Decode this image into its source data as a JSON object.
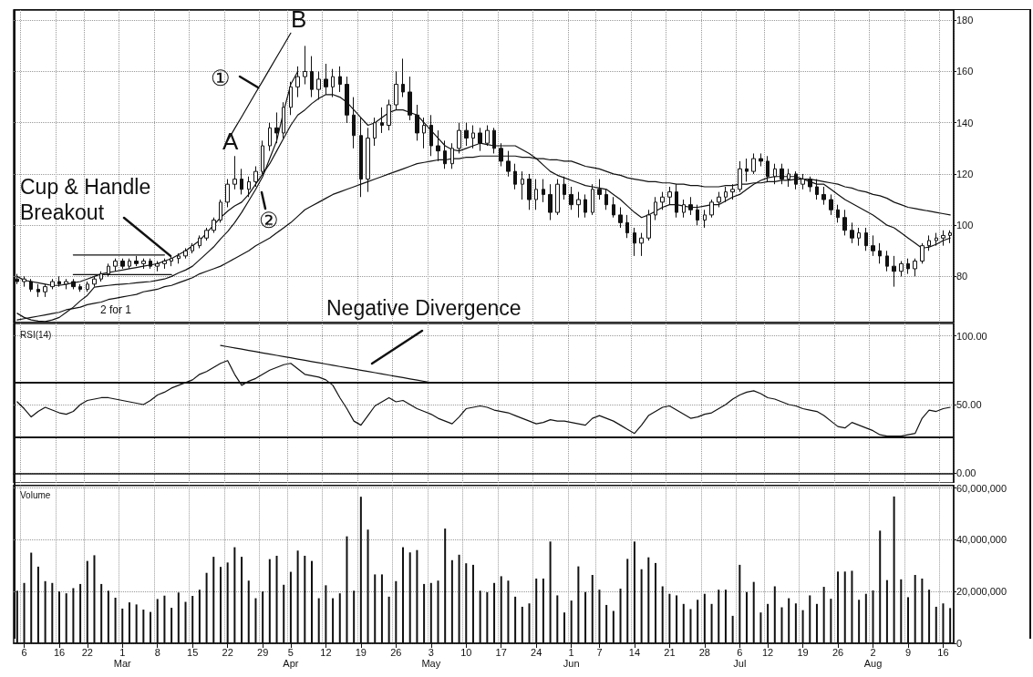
{
  "chart_data": [
    {
      "type": "candlestick",
      "color": "#111111",
      "grid": true,
      "tick_labels": "y",
      "marker": "none",
      "categories": [
        null,
        null,
        null,
        null,
        null,
        null,
        null,
        null,
        null,
        null,
        null,
        null,
        null,
        null,
        null,
        null,
        null,
        null,
        null,
        null,
        null,
        null,
        null,
        null,
        null,
        null,
        null,
        null,
        null,
        null,
        null,
        null,
        null,
        null,
        null,
        null,
        null,
        null,
        null,
        null,
        null,
        null,
        null,
        null,
        null,
        null,
        null,
        null,
        null,
        null,
        null,
        null,
        null,
        null,
        null,
        null,
        null,
        null,
        null,
        null,
        null,
        null,
        null,
        null,
        null,
        null,
        null,
        null,
        null,
        null,
        null,
        null,
        null,
        null,
        null,
        null,
        null,
        null,
        null,
        null,
        null,
        null,
        null,
        null,
        null,
        null,
        null,
        null,
        null,
        null,
        null,
        null,
        null,
        null,
        null,
        null,
        null,
        null,
        null,
        null,
        null,
        null,
        null,
        null,
        null,
        null,
        null,
        null,
        null,
        null,
        null,
        null,
        null,
        null,
        null,
        null,
        null,
        null,
        null,
        null,
        null,
        null,
        null,
        null,
        null,
        null,
        null,
        null,
        null,
        null,
        null,
        null,
        null,
        null
      ],
      "ohlc": [
        [
          79,
          81,
          77,
          78
        ],
        [
          78,
          80,
          76,
          79
        ],
        [
          78,
          79,
          74,
          75
        ],
        [
          75,
          77,
          72,
          74
        ],
        [
          74,
          77,
          72,
          76
        ],
        [
          76,
          79,
          75,
          78
        ],
        [
          78,
          80,
          76,
          77
        ],
        [
          77,
          79,
          75,
          78
        ],
        [
          78,
          79,
          75,
          76
        ],
        [
          76,
          77,
          74,
          75
        ],
        [
          75,
          78,
          74,
          77
        ],
        [
          77,
          80,
          76,
          79
        ],
        [
          79,
          82,
          78,
          81
        ],
        [
          81,
          85,
          80,
          84
        ],
        [
          84,
          87,
          82,
          86
        ],
        [
          86,
          87,
          83,
          84
        ],
        [
          84,
          87,
          83,
          86
        ],
        [
          86,
          88,
          84,
          85
        ],
        [
          85,
          87,
          83,
          86
        ],
        [
          86,
          87,
          83,
          84
        ],
        [
          84,
          86,
          82,
          85
        ],
        [
          85,
          87,
          83,
          86
        ],
        [
          86,
          88,
          84,
          87
        ],
        [
          87,
          89,
          85,
          88
        ],
        [
          88,
          91,
          87,
          90
        ],
        [
          90,
          93,
          89,
          92
        ],
        [
          92,
          96,
          91,
          95
        ],
        [
          95,
          99,
          94,
          98
        ],
        [
          98,
          103,
          97,
          102
        ],
        [
          102,
          110,
          101,
          109
        ],
        [
          109,
          118,
          107,
          116
        ],
        [
          116,
          127,
          114,
          118
        ],
        [
          118,
          122,
          112,
          114
        ],
        [
          114,
          119,
          111,
          117
        ],
        [
          117,
          123,
          115,
          121
        ],
        [
          121,
          133,
          120,
          131
        ],
        [
          131,
          140,
          129,
          138
        ],
        [
          138,
          144,
          132,
          136
        ],
        [
          136,
          148,
          134,
          146
        ],
        [
          146,
          156,
          143,
          154
        ],
        [
          154,
          162,
          150,
          158
        ],
        [
          158,
          170,
          155,
          160
        ],
        [
          160,
          166,
          150,
          153
        ],
        [
          153,
          160,
          149,
          157
        ],
        [
          157,
          163,
          151,
          154
        ],
        [
          154,
          161,
          150,
          158
        ],
        [
          158,
          162,
          152,
          155
        ],
        [
          155,
          158,
          140,
          143
        ],
        [
          143,
          150,
          130,
          135
        ],
        [
          135,
          142,
          111,
          118
        ],
        [
          118,
          138,
          113,
          134
        ],
        [
          134,
          142,
          131,
          140
        ],
        [
          140,
          146,
          136,
          139
        ],
        [
          139,
          149,
          137,
          147
        ],
        [
          147,
          160,
          145,
          155
        ],
        [
          155,
          165,
          150,
          152
        ],
        [
          152,
          158,
          141,
          143
        ],
        [
          143,
          147,
          133,
          136
        ],
        [
          136,
          142,
          130,
          139
        ],
        [
          139,
          143,
          127,
          131
        ],
        [
          131,
          137,
          125,
          129
        ],
        [
          129,
          133,
          122,
          124
        ],
        [
          124,
          132,
          122,
          130
        ],
        [
          130,
          140,
          128,
          137
        ],
        [
          137,
          140,
          131,
          134
        ],
        [
          134,
          139,
          130,
          136
        ],
        [
          136,
          138,
          129,
          132
        ],
        [
          132,
          139,
          131,
          137
        ],
        [
          137,
          138,
          128,
          130
        ],
        [
          130,
          132,
          123,
          125
        ],
        [
          125,
          129,
          119,
          121
        ],
        [
          121,
          124,
          114,
          116
        ],
        [
          116,
          121,
          110,
          118
        ],
        [
          118,
          120,
          106,
          110
        ],
        [
          110,
          118,
          106,
          114
        ],
        [
          114,
          118,
          109,
          112
        ],
        [
          112,
          116,
          102,
          105
        ],
        [
          105,
          118,
          104,
          116
        ],
        [
          116,
          119,
          110,
          112
        ],
        [
          112,
          115,
          106,
          108
        ],
        [
          108,
          113,
          103,
          110
        ],
        [
          110,
          112,
          103,
          105
        ],
        [
          105,
          116,
          104,
          114
        ],
        [
          114,
          118,
          110,
          112
        ],
        [
          112,
          114,
          106,
          108
        ],
        [
          108,
          111,
          103,
          104
        ],
        [
          104,
          107,
          99,
          101
        ],
        [
          101,
          104,
          95,
          97
        ],
        [
          97,
          99,
          88,
          93
        ],
        [
          93,
          97,
          88,
          95
        ],
        [
          95,
          106,
          94,
          104
        ],
        [
          104,
          111,
          102,
          109
        ],
        [
          109,
          113,
          106,
          111
        ],
        [
          111,
          115,
          108,
          113
        ],
        [
          113,
          116,
          103,
          105
        ],
        [
          105,
          110,
          103,
          108
        ],
        [
          108,
          111,
          104,
          106
        ],
        [
          106,
          108,
          100,
          102
        ],
        [
          102,
          106,
          99,
          104
        ],
        [
          104,
          110,
          103,
          109
        ],
        [
          109,
          113,
          107,
          111
        ],
        [
          111,
          115,
          109,
          113
        ],
        [
          113,
          116,
          110,
          114
        ],
        [
          114,
          125,
          113,
          122
        ],
        [
          122,
          126,
          117,
          121
        ],
        [
          121,
          128,
          120,
          126
        ],
        [
          126,
          128,
          123,
          125
        ],
        [
          125,
          127,
          117,
          119
        ],
        [
          119,
          124,
          116,
          122
        ],
        [
          122,
          124,
          116,
          118
        ],
        [
          118,
          122,
          115,
          120
        ],
        [
          120,
          121,
          114,
          116
        ],
        [
          116,
          120,
          114,
          118
        ],
        [
          118,
          119,
          113,
          115
        ],
        [
          115,
          118,
          110,
          112
        ],
        [
          112,
          115,
          108,
          110
        ],
        [
          110,
          112,
          104,
          106
        ],
        [
          106,
          108,
          101,
          103
        ],
        [
          103,
          106,
          96,
          98
        ],
        [
          98,
          101,
          93,
          95
        ],
        [
          95,
          99,
          92,
          97
        ],
        [
          97,
          99,
          90,
          92
        ],
        [
          92,
          96,
          88,
          90
        ],
        [
          90,
          93,
          85,
          88
        ],
        [
          88,
          90,
          82,
          84
        ],
        [
          84,
          88,
          76,
          82
        ],
        [
          82,
          86,
          80,
          85
        ],
        [
          85,
          87,
          81,
          83
        ],
        [
          83,
          87,
          80,
          86
        ],
        [
          86,
          93,
          85,
          92
        ],
        [
          92,
          96,
          90,
          94
        ],
        [
          94,
          97,
          92,
          95
        ],
        [
          95,
          98,
          92,
          96
        ],
        [
          96,
          98,
          93,
          97
        ]
      ],
      "series": [
        {
          "type": "line",
          "color": "#111111",
          "values": [
            80,
            78.5,
            78,
            77.5,
            77,
            76.5,
            76.5,
            77,
            77.5,
            78,
            79,
            80,
            81,
            81.5,
            82,
            82.5,
            83,
            83.5,
            84,
            84.5,
            85,
            86,
            87,
            88.5,
            90,
            92,
            94,
            97,
            100,
            103,
            105.5,
            107.5,
            109,
            112,
            116,
            120,
            124,
            129,
            134,
            139,
            143,
            145,
            147.5,
            149.5,
            151,
            151,
            150,
            148,
            145,
            142,
            139,
            140,
            142,
            144,
            145,
            145,
            144,
            143,
            140,
            137,
            134,
            131,
            129.5,
            129,
            130,
            131,
            132,
            131.5,
            131,
            131,
            131,
            131,
            129.5,
            128,
            126,
            123.5,
            121,
            119.5,
            118.5,
            117.5,
            116.5,
            115.5,
            115,
            114.5,
            114,
            112,
            110,
            107.5,
            105,
            103,
            104,
            105.5,
            107,
            108,
            108,
            107.5,
            107,
            107,
            107.5,
            108,
            108,
            109.5,
            111,
            112,
            114,
            116,
            117.5,
            118.5,
            119,
            119,
            119,
            119,
            118,
            117,
            116,
            116,
            114,
            112,
            110,
            108.5,
            107,
            105.5,
            104,
            102,
            100,
            99,
            97,
            95,
            93,
            91,
            91.5,
            92.5,
            94,
            95
          ]
        },
        {
          "type": "line",
          "color": "#111111",
          "values": [
            65.6,
            64,
            63,
            62.6,
            62.4,
            63,
            64,
            66,
            68,
            70.5,
            72.6,
            75.8,
            76.2,
            76.5,
            76.8,
            77,
            77.2,
            77.5,
            77.8,
            78,
            78.5,
            79,
            80,
            81.4,
            82.5,
            84,
            86.5,
            89,
            91.5,
            94.7,
            97.5,
            101,
            105,
            109.5,
            114,
            119,
            126,
            133,
            144.6,
            155,
            160,
            null,
            null,
            null,
            null,
            null,
            null,
            null,
            null,
            null,
            null,
            null,
            null,
            null,
            null,
            null,
            null,
            null,
            null,
            null,
            null,
            null,
            null,
            null,
            null,
            null,
            null,
            null,
            null,
            null,
            null,
            null,
            null,
            null,
            null,
            null,
            null,
            null,
            null,
            null,
            null,
            null,
            null,
            null,
            null,
            null,
            null,
            null,
            null,
            null,
            null,
            null,
            null,
            null,
            null,
            null,
            null,
            null,
            null,
            null,
            null,
            null,
            null,
            null,
            null,
            null,
            null,
            null,
            null,
            null,
            null,
            null,
            null,
            null,
            null,
            null,
            null,
            null,
            null,
            null,
            null,
            null,
            null,
            null,
            null,
            null,
            null,
            null,
            null,
            null,
            null,
            null,
            null,
            null
          ]
        },
        {
          "type": "line",
          "color": "#111111",
          "values": [
            null,
            null,
            null,
            null,
            null,
            null,
            null,
            null,
            null,
            null,
            null,
            null,
            null,
            null,
            null,
            null,
            null,
            null,
            null,
            null,
            null,
            null,
            null,
            null,
            null,
            null,
            null,
            null,
            null,
            null,
            133,
            137.7,
            142.3,
            147,
            151.7,
            156.3,
            161,
            165.7,
            170.3,
            175,
            null,
            null,
            null,
            null,
            null,
            null,
            null,
            null,
            null,
            null,
            null,
            null,
            null,
            null,
            null,
            null,
            null,
            null,
            null,
            null,
            null,
            null,
            null,
            null,
            null,
            null,
            null,
            null,
            null,
            null,
            null,
            null,
            null,
            null,
            null,
            null,
            null,
            null,
            null,
            null,
            null,
            null,
            null,
            null,
            null,
            null,
            null,
            null,
            null,
            null,
            null,
            null,
            null,
            null,
            null,
            null,
            null,
            null,
            null,
            null,
            null,
            null,
            null,
            null,
            null,
            null,
            null,
            null,
            null,
            null,
            null,
            null,
            null,
            null,
            null,
            null,
            null,
            null,
            null,
            null,
            null,
            null,
            null,
            null,
            null,
            null,
            null,
            null,
            null,
            null,
            null,
            null,
            null,
            null
          ]
        },
        {
          "type": "line",
          "color": "#111111",
          "values": [
            null,
            null,
            null,
            null,
            null,
            null,
            null,
            null,
            88.4,
            88.4,
            88.4,
            88.4,
            88.4,
            88.4,
            88.4,
            88.4,
            88.4,
            88.4,
            88.4,
            88.4,
            88.4,
            88.4,
            null,
            null,
            null,
            null,
            null,
            null,
            null,
            null,
            null,
            null,
            null,
            null,
            null,
            null,
            null,
            null,
            null,
            null,
            null,
            null,
            null,
            null,
            null,
            null,
            null,
            null,
            null,
            null,
            null,
            null,
            null,
            null,
            null,
            null,
            null,
            null,
            null,
            null,
            null,
            null,
            null,
            null,
            null,
            null,
            null,
            null,
            null,
            null,
            null,
            null,
            null,
            null,
            null,
            null,
            null,
            null,
            null,
            null,
            null,
            null,
            null,
            null,
            null,
            null,
            null,
            null,
            null,
            null,
            null,
            null,
            null,
            null,
            null,
            null,
            null,
            null,
            null,
            null,
            null,
            null,
            null,
            null,
            null,
            null,
            null,
            null,
            null,
            null,
            null,
            null,
            null,
            null,
            null,
            null,
            null,
            null,
            null,
            null,
            null,
            null,
            null,
            null,
            null,
            null,
            null,
            null,
            null,
            null,
            null,
            null,
            null,
            null
          ]
        },
        {
          "type": "line",
          "color": "#111111",
          "values": [
            null,
            null,
            null,
            null,
            null,
            null,
            null,
            null,
            80.7,
            80.7,
            80.7,
            80.7,
            80.7,
            80.7,
            80.7,
            80.7,
            80.7,
            80.7,
            80.7,
            80.7,
            80.7,
            80.7,
            80.7,
            null,
            null,
            null,
            null,
            null,
            null,
            null,
            null,
            null,
            null,
            null,
            null,
            null,
            null,
            null,
            null,
            null,
            null,
            null,
            null,
            null,
            null,
            null,
            null,
            null,
            null,
            null,
            null,
            null,
            null,
            null,
            null,
            null,
            null,
            null,
            null,
            null,
            null,
            null,
            null,
            null,
            null,
            null,
            null,
            null,
            null,
            null,
            null,
            null,
            null,
            null,
            null,
            null,
            null,
            null,
            null,
            null,
            null,
            null,
            null,
            null,
            null,
            null,
            null,
            null,
            null,
            null,
            null,
            null,
            null,
            null,
            null,
            null,
            null,
            null,
            null,
            null,
            null,
            null,
            null,
            null,
            null,
            null,
            null,
            null,
            null,
            null,
            null,
            null,
            null,
            null,
            null,
            null,
            null,
            null,
            null,
            null,
            null,
            null,
            null,
            null,
            null,
            null,
            null,
            null,
            null,
            null,
            null,
            null,
            null,
            null
          ]
        },
        {
          "type": "line",
          "color": "#111111",
          "values": [
            63,
            63.5,
            64,
            64.5,
            65,
            65.5,
            66,
            67,
            67.5,
            68,
            69,
            69.5,
            70,
            71,
            71.5,
            72,
            72.5,
            73,
            74,
            74.5,
            75,
            76,
            76.5,
            77.5,
            78.5,
            79.5,
            81,
            82,
            83,
            84,
            85.5,
            87,
            88.5,
            90,
            92,
            93.5,
            95,
            97,
            99,
            101,
            103.5,
            106,
            107.5,
            109,
            110.5,
            112,
            113,
            114,
            115,
            116,
            117,
            118,
            119,
            120,
            121,
            122,
            123,
            124,
            124.5,
            125,
            125.5,
            125.5,
            126,
            126,
            126.5,
            126.5,
            127,
            127,
            127,
            127,
            127,
            127,
            126.5,
            126.5,
            126,
            126,
            125.5,
            125.5,
            125,
            125,
            124,
            123,
            122.5,
            122,
            121,
            120,
            119.5,
            118.5,
            118,
            117.5,
            117,
            117,
            116.5,
            116.5,
            116,
            116,
            115.5,
            115.5,
            115,
            115,
            115,
            115.5,
            115.5,
            116,
            116,
            116.5,
            116.5,
            117,
            117,
            117.5,
            117.5,
            118,
            118,
            118,
            117.5,
            117,
            116.5,
            116,
            115,
            114.5,
            113.5,
            113,
            112,
            111.5,
            110.5,
            109,
            108,
            107,
            106.5,
            106,
            105.5,
            105,
            104.5,
            104
          ]
        }
      ],
      "ylim": [
        62,
        184
      ],
      "yticks": [
        80,
        100,
        120,
        140,
        160,
        180
      ],
      "annotations": [
        {
          "text": "Cup & Handle Breakout",
          "y": 88
        },
        "A",
        "B",
        "①",
        "②",
        "2 for 1"
      ]
    },
    {
      "type": "line",
      "title": "RSI(14)",
      "color": "#111111",
      "grid": true,
      "tick_labels": "y",
      "marker": "none",
      "categories": [
        null,
        null,
        null,
        null,
        null,
        null,
        null,
        null,
        null,
        null,
        null,
        null,
        null,
        null,
        null,
        null,
        null,
        null,
        null,
        null,
        null,
        null,
        null,
        null,
        null,
        null,
        null,
        null,
        null,
        null,
        null,
        null,
        null,
        null,
        null,
        null,
        null,
        null,
        null,
        null,
        null,
        null,
        null,
        null,
        null,
        null,
        null,
        null,
        null,
        null,
        null,
        null,
        null,
        null,
        null,
        null,
        null,
        null,
        null,
        null,
        null,
        null,
        null,
        null,
        null,
        null,
        null,
        null,
        null,
        null,
        null,
        null,
        null,
        null,
        null,
        null,
        null,
        null,
        null,
        null,
        null,
        null,
        null,
        null,
        null,
        null,
        null,
        null,
        null,
        null,
        null,
        null,
        null,
        null,
        null,
        null,
        null,
        null,
        null,
        null,
        null,
        null,
        null,
        null,
        null,
        null,
        null,
        null,
        null,
        null,
        null,
        null,
        null,
        null,
        null,
        null,
        null,
        null,
        null,
        null,
        null,
        null,
        null,
        null,
        null,
        null,
        null,
        null,
        null,
        null,
        null,
        null,
        null,
        null
      ],
      "values": [
        52,
        47,
        41,
        45,
        48,
        46,
        44,
        43,
        45,
        50,
        53,
        54,
        55,
        55,
        54,
        53,
        52,
        51,
        50,
        53,
        57,
        59,
        62,
        64,
        66,
        68,
        72,
        74,
        77,
        80,
        82,
        72,
        64,
        67,
        69,
        72,
        75,
        77,
        79,
        80,
        76,
        72,
        71,
        70,
        68,
        64,
        55,
        47,
        38,
        35,
        42,
        49,
        52,
        55,
        52,
        53,
        50,
        47,
        45,
        43,
        40,
        38,
        36,
        41,
        47,
        48,
        49,
        48,
        46,
        45,
        44,
        42,
        40,
        38,
        36,
        37,
        39,
        38,
        38,
        37,
        36,
        35,
        40,
        42,
        40,
        38,
        35,
        32,
        29,
        35,
        42,
        45,
        48,
        49,
        46,
        43,
        40,
        41,
        43,
        44,
        47,
        50,
        54,
        57,
        59,
        60,
        58,
        55,
        54,
        52,
        50,
        49,
        47,
        46,
        45,
        42,
        38,
        34,
        33,
        37,
        35,
        33,
        31,
        28,
        27,
        27,
        27,
        28,
        29,
        40,
        46,
        45,
        47,
        48
      ],
      "series": [
        {
          "type": "line",
          "color": "#111111",
          "values": [
            null,
            null,
            null,
            null,
            null,
            null,
            null,
            null,
            null,
            null,
            null,
            null,
            null,
            null,
            null,
            null,
            null,
            null,
            null,
            null,
            null,
            null,
            null,
            null,
            null,
            null,
            null,
            null,
            null,
            93,
            92.1,
            91.2,
            90.3,
            89.4,
            88.5,
            87.6,
            86.7,
            85.8,
            84.9,
            84,
            83.1,
            82.2,
            81.3,
            80.4,
            79.5,
            78.6,
            77.7,
            76.8,
            75.9,
            75,
            74.1,
            73.2,
            72.3,
            71.4,
            70.5,
            69.6,
            68.7,
            67.8,
            66.9,
            66,
            null,
            null,
            null,
            null,
            null,
            null,
            null,
            null,
            null,
            null,
            null,
            null,
            null,
            null,
            null,
            null,
            null,
            null,
            null,
            null,
            null,
            null,
            null,
            null,
            null,
            null,
            null,
            null,
            null,
            null,
            null,
            null,
            null,
            null,
            null,
            null,
            null,
            null,
            null,
            null,
            null,
            null,
            null,
            null,
            null,
            null,
            null,
            null,
            null,
            null,
            null,
            null,
            null,
            null,
            null,
            null,
            null,
            null,
            null,
            null,
            null,
            null,
            null,
            null,
            null,
            null,
            null,
            null,
            null,
            null,
            null,
            null,
            null,
            null
          ]
        }
      ],
      "ylim": [
        -7,
        109
      ],
      "yticks": [
        {
          "value": 0,
          "label": "0.00"
        },
        {
          "value": 50,
          "label": "50.00"
        },
        {
          "value": 100,
          "label": "100.00"
        }
      ],
      "ref_lines": [
        {
          "axis": "y",
          "value": 66,
          "color": "#111111"
        },
        {
          "axis": "y",
          "value": 26,
          "color": "#111111"
        }
      ],
      "annotations": [
        "Negative Divergence"
      ]
    },
    {
      "type": "bar",
      "title": "Volume",
      "color": "#111111",
      "grid": true,
      "categories": [
        null,
        "6",
        null,
        null,
        null,
        null,
        "16",
        null,
        null,
        null,
        "22",
        null,
        null,
        null,
        null,
        "1\nMar",
        null,
        null,
        null,
        null,
        "8",
        null,
        null,
        null,
        null,
        "15",
        null,
        null,
        null,
        null,
        "22",
        null,
        null,
        null,
        null,
        "29",
        null,
        null,
        null,
        "5\nApr",
        null,
        null,
        null,
        null,
        "12",
        null,
        null,
        null,
        null,
        "19",
        null,
        null,
        null,
        null,
        "26",
        null,
        null,
        null,
        null,
        "3\nMay",
        null,
        null,
        null,
        null,
        "10",
        null,
        null,
        null,
        null,
        "17",
        null,
        null,
        null,
        null,
        "24",
        null,
        null,
        null,
        null,
        "1\nJun",
        null,
        null,
        null,
        "7",
        null,
        null,
        null,
        null,
        "14",
        null,
        null,
        null,
        null,
        "21",
        null,
        null,
        null,
        null,
        "28",
        null,
        null,
        null,
        null,
        "6\nJul",
        null,
        null,
        null,
        "12",
        null,
        null,
        null,
        null,
        "19",
        null,
        null,
        null,
        null,
        "26",
        null,
        null,
        null,
        null,
        "2\nAug",
        null,
        null,
        null,
        null,
        "9",
        null,
        null,
        null,
        null,
        "16",
        null
      ],
      "values": [
        20300000,
        23300000,
        35000000,
        29600000,
        24000000,
        23300000,
        20000000,
        19300000,
        21300000,
        22900000,
        31800000,
        34000000,
        22900000,
        20300000,
        17600000,
        13400000,
        15800000,
        15000000,
        13000000,
        12100000,
        17100000,
        18400000,
        13700000,
        19600000,
        16000000,
        18300000,
        20700000,
        27200000,
        33400000,
        29500000,
        31200000,
        37100000,
        33400000,
        24200000,
        17400000,
        20000000,
        32500000,
        33800000,
        22600000,
        27600000,
        35800000,
        33800000,
        31800000,
        17400000,
        22400000,
        17400000,
        19300000,
        41300000,
        20300000,
        56600000,
        43900000,
        26600000,
        26600000,
        18000000,
        24000000,
        37100000,
        35100000,
        36000000,
        22900000,
        23300000,
        24200000,
        44300000,
        32100000,
        34200000,
        30900000,
        30300000,
        20300000,
        19700000,
        23300000,
        25900000,
        24200000,
        18000000,
        14100000,
        15400000,
        25000000,
        25000000,
        39300000,
        18500000,
        11900000,
        16500000,
        29700000,
        19800000,
        26400000,
        20700000,
        14800000,
        12500000,
        21100000,
        32600000,
        39300000,
        28600000,
        33200000,
        31000000,
        22000000,
        19100000,
        18500000,
        15200000,
        13200000,
        16800000,
        19100000,
        15200000,
        20700000,
        20700000,
        10600000,
        30300000,
        19800000,
        23700000,
        11900000,
        15200000,
        22000000,
        13900000,
        17400000,
        15400000,
        12800000,
        18500000,
        15200000,
        21800000,
        17200000,
        27700000,
        27700000,
        28000000,
        16800000,
        19100000,
        20400000,
        43500000,
        24400000,
        56700000,
        24700000,
        17800000,
        26400000,
        25000000,
        20700000,
        14100000,
        15400000,
        13600000
      ],
      "ylim": [
        0,
        61000000
      ],
      "yticks": [
        0,
        {
          "value": 20000000,
          "label": "20,000,000"
        },
        {
          "value": 40000000,
          "label": "40,000,000"
        },
        {
          "value": 60000000,
          "label": "60,000,000"
        }
      ]
    }
  ]
}
